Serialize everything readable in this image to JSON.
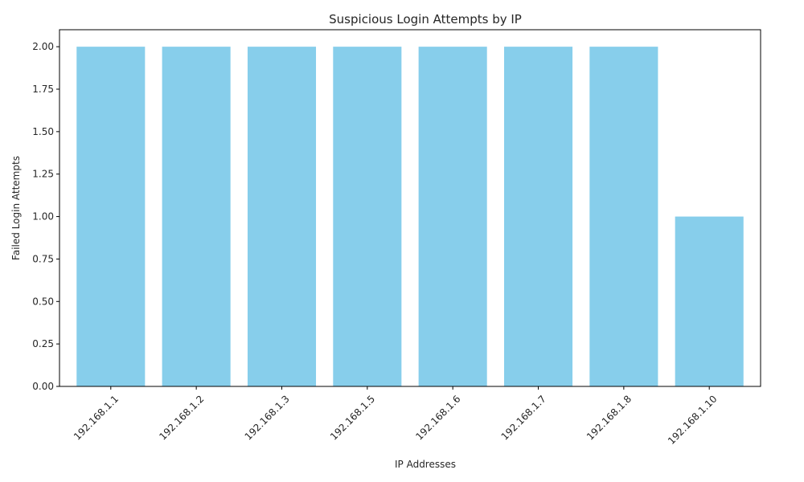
{
  "chart_data": {
    "type": "bar",
    "title": "Suspicious Login Attempts by IP",
    "xlabel": "IP Addresses",
    "ylabel": "Failed Login Attempts",
    "categories": [
      "192.168.1.1",
      "192.168.1.2",
      "192.168.1.3",
      "192.168.1.5",
      "192.168.1.6",
      "192.168.1.7",
      "192.168.1.8",
      "192.168.1.10"
    ],
    "values": [
      2,
      2,
      2,
      2,
      2,
      2,
      2,
      1
    ],
    "ylim": [
      0,
      2.1
    ],
    "yticks": [
      "0.00",
      "0.25",
      "0.50",
      "0.75",
      "1.00",
      "1.25",
      "1.50",
      "1.75",
      "2.00"
    ],
    "bar_color": "#87ceeb",
    "grid": false
  }
}
